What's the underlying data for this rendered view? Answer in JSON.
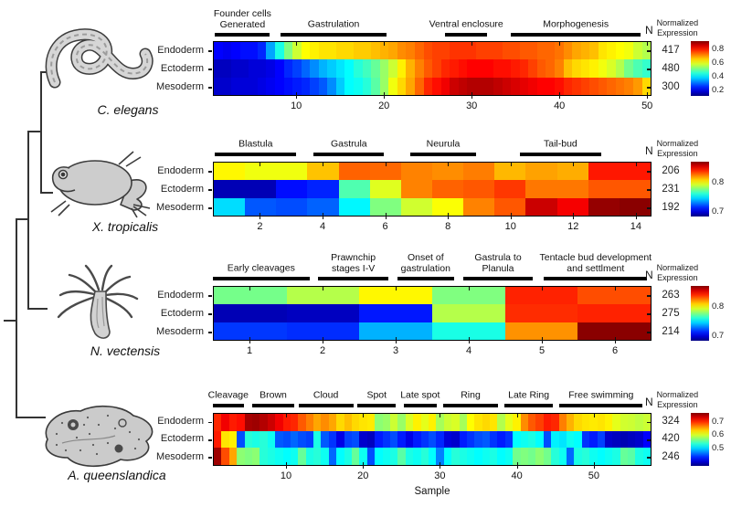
{
  "figure": {
    "xlabel": "Sample",
    "n_header": "N",
    "colorbar_title": "Normalized\nExpression"
  },
  "chart_data": [
    {
      "type": "heatmap",
      "species": "C. elegans",
      "rows": [
        "Endoderm",
        "Ectoderm",
        "Mesoderm"
      ],
      "n_values": [
        417,
        480,
        300
      ],
      "x_ticks": [
        10,
        20,
        30,
        40,
        50
      ],
      "n_samples": 50,
      "stages": [
        {
          "label": "Founder cells\nGenerated",
          "span": [
            0.005,
            0.13
          ]
        },
        {
          "label": "Gastrulation",
          "span": [
            0.155,
            0.395
          ]
        },
        {
          "label": "Ventral enclosure",
          "span": [
            0.53,
            0.625
          ]
        },
        {
          "label": "Morphogenesis",
          "span": [
            0.68,
            0.975
          ]
        }
      ],
      "colorbar": {
        "vmin": 0.1,
        "vmax": 0.9,
        "ticks": [
          0.8,
          0.6,
          0.4,
          0.2
        ]
      },
      "values": [
        [
          0.2,
          0.19,
          0.2,
          0.21,
          0.21,
          0.23,
          0.33,
          0.42,
          0.5,
          0.56,
          0.6,
          0.61,
          0.62,
          0.62,
          0.63,
          0.63,
          0.64,
          0.64,
          0.65,
          0.66,
          0.67,
          0.69,
          0.7,
          0.72,
          0.74,
          0.75,
          0.75,
          0.76,
          0.76,
          0.76,
          0.75,
          0.75,
          0.75,
          0.74,
          0.74,
          0.73,
          0.73,
          0.72,
          0.72,
          0.71,
          0.69,
          0.67,
          0.66,
          0.65,
          0.62,
          0.61,
          0.6,
          0.59,
          0.56,
          0.54
        ],
        [
          0.15,
          0.15,
          0.16,
          0.16,
          0.17,
          0.17,
          0.18,
          0.2,
          0.23,
          0.25,
          0.28,
          0.31,
          0.34,
          0.36,
          0.38,
          0.4,
          0.43,
          0.45,
          0.48,
          0.52,
          0.56,
          0.61,
          0.66,
          0.7,
          0.73,
          0.75,
          0.77,
          0.78,
          0.79,
          0.8,
          0.8,
          0.8,
          0.79,
          0.79,
          0.78,
          0.77,
          0.75,
          0.73,
          0.72,
          0.7,
          0.65,
          0.63,
          0.62,
          0.61,
          0.59,
          0.57,
          0.54,
          0.49,
          0.46,
          0.44
        ],
        [
          0.16,
          0.16,
          0.17,
          0.17,
          0.17,
          0.18,
          0.19,
          0.2,
          0.21,
          0.22,
          0.23,
          0.25,
          0.27,
          0.31,
          0.36,
          0.4,
          0.41,
          0.43,
          0.47,
          0.52,
          0.59,
          0.63,
          0.67,
          0.72,
          0.77,
          0.79,
          0.81,
          0.84,
          0.85,
          0.86,
          0.86,
          0.86,
          0.85,
          0.84,
          0.83,
          0.82,
          0.81,
          0.8,
          0.8,
          0.79,
          0.77,
          0.76,
          0.75,
          0.74,
          0.73,
          0.72,
          0.71,
          0.7,
          0.68,
          0.63
        ]
      ]
    },
    {
      "type": "heatmap",
      "species": "X. tropicalis",
      "rows": [
        "Endoderm",
        "Ectoderm",
        "Mesoderm"
      ],
      "n_values": [
        206,
        231,
        192
      ],
      "x_ticks": [
        2,
        4,
        6,
        8,
        10,
        12,
        14
      ],
      "n_samples": 14,
      "stages": [
        {
          "label": "Blastula",
          "span": [
            0.005,
            0.19
          ]
        },
        {
          "label": "Gastrula",
          "span": [
            0.23,
            0.39
          ]
        },
        {
          "label": "Neurula",
          "span": [
            0.45,
            0.6
          ]
        },
        {
          "label": "Tail-bud",
          "span": [
            0.7,
            0.885
          ]
        }
      ],
      "colorbar": {
        "vmin": 0.68,
        "vmax": 0.87,
        "ticks": [
          0.8,
          0.7
        ]
      },
      "values": [
        [
          0.8,
          0.796,
          0.796,
          0.81,
          0.828,
          0.827,
          0.822,
          0.82,
          0.823,
          0.812,
          0.816,
          0.814,
          0.842,
          0.842
        ],
        [
          0.69,
          0.69,
          0.706,
          0.71,
          0.766,
          0.793,
          0.822,
          0.828,
          0.83,
          0.836,
          0.824,
          0.824,
          0.83,
          0.83
        ],
        [
          0.745,
          0.72,
          0.718,
          0.722,
          0.75,
          0.775,
          0.79,
          0.798,
          0.822,
          0.83,
          0.856,
          0.848,
          0.866,
          0.868
        ]
      ]
    },
    {
      "type": "heatmap",
      "species": "N. vectensis",
      "rows": [
        "Endoderm",
        "Ectoderm",
        "Mesoderm"
      ],
      "n_values": [
        263,
        275,
        214
      ],
      "x_ticks": [
        1,
        2,
        3,
        4,
        5,
        6
      ],
      "n_samples": 6,
      "stages": [
        {
          "label": "Early cleavages",
          "span": [
            0.0,
            0.22
          ]
        },
        {
          "label": "Prawnchip\nstages I-V",
          "span": [
            0.24,
            0.4
          ]
        },
        {
          "label": "Onset of\ngastrulation",
          "span": [
            0.42,
            0.55
          ]
        },
        {
          "label": "Gastrula to\nPlanula",
          "span": [
            0.57,
            0.73
          ]
        },
        {
          "label": "Tentacle bud development\nand settlment",
          "span": [
            0.755,
            0.99
          ]
        }
      ],
      "colorbar": {
        "vmin": 0.68,
        "vmax": 0.87,
        "ticks": [
          0.8,
          0.7
        ]
      },
      "values": [
        [
          0.773,
          0.785,
          0.8,
          0.775,
          0.84,
          0.832
        ],
        [
          0.69,
          0.692,
          0.708,
          0.785,
          0.838,
          0.84
        ],
        [
          0.714,
          0.712,
          0.737,
          0.756,
          0.819,
          0.868
        ]
      ]
    },
    {
      "type": "heatmap",
      "species": "A. queenslandica",
      "rows": [
        "Endoderm",
        "Ectoderm",
        "Mesoderm"
      ],
      "n_values": [
        324,
        420,
        246
      ],
      "x_ticks": [
        10,
        20,
        30,
        40,
        50
      ],
      "n_samples": 57,
      "stages": [
        {
          "label": "Cleavage",
          "span": [
            0.0,
            0.07
          ]
        },
        {
          "label": "Brown",
          "span": [
            0.09,
            0.185
          ]
        },
        {
          "label": "Cloud",
          "span": [
            0.195,
            0.32
          ]
        },
        {
          "label": "Spot",
          "span": [
            0.33,
            0.417
          ]
        },
        {
          "label": "Late spot",
          "span": [
            0.435,
            0.51
          ]
        },
        {
          "label": "Ring",
          "span": [
            0.525,
            0.65
          ]
        },
        {
          "label": "Late Ring",
          "span": [
            0.665,
            0.775
          ]
        },
        {
          "label": "Free swimming",
          "span": [
            0.79,
            0.98
          ]
        }
      ],
      "colorbar": {
        "vmin": 0.36,
        "vmax": 0.76,
        "ticks": [
          0.7,
          0.6,
          0.5
        ]
      },
      "values": [
        [
          0.695,
          0.715,
          0.7,
          0.705,
          0.745,
          0.748,
          0.74,
          0.73,
          0.715,
          0.7,
          0.695,
          0.675,
          0.66,
          0.645,
          0.655,
          0.645,
          0.625,
          0.635,
          0.625,
          0.62,
          0.618,
          0.565,
          0.57,
          0.59,
          0.57,
          0.595,
          0.615,
          0.6,
          0.615,
          0.575,
          0.59,
          0.595,
          0.575,
          0.61,
          0.62,
          0.625,
          0.62,
          0.58,
          0.6,
          0.615,
          0.655,
          0.675,
          0.685,
          0.7,
          0.695,
          0.66,
          0.64,
          0.625,
          0.62,
          0.618,
          0.62,
          0.615,
          0.6,
          0.592,
          0.59,
          0.585,
          0.59
        ],
        [
          0.7,
          0.62,
          0.615,
          0.44,
          0.525,
          0.52,
          0.525,
          0.515,
          0.445,
          0.44,
          0.45,
          0.44,
          0.435,
          0.52,
          0.445,
          0.43,
          0.4,
          0.435,
          0.44,
          0.39,
          0.385,
          0.42,
          0.43,
          0.44,
          0.42,
          0.4,
          0.42,
          0.43,
          0.44,
          0.425,
          0.395,
          0.39,
          0.42,
          0.43,
          0.44,
          0.445,
          0.43,
          0.42,
          0.43,
          0.51,
          0.515,
          0.52,
          0.51,
          0.44,
          0.505,
          0.5,
          0.515,
          0.51,
          0.43,
          0.42,
          0.435,
          0.39,
          0.385,
          0.38,
          0.385,
          0.39,
          0.41
        ],
        [
          0.748,
          0.68,
          0.645,
          0.565,
          0.56,
          0.565,
          0.525,
          0.52,
          0.515,
          0.51,
          0.515,
          0.55,
          0.52,
          0.525,
          0.515,
          0.45,
          0.51,
          0.52,
          0.55,
          0.515,
          0.44,
          0.51,
          0.515,
          0.52,
          0.545,
          0.52,
          0.515,
          0.525,
          0.51,
          0.46,
          0.51,
          0.525,
          0.52,
          0.515,
          0.51,
          0.515,
          0.52,
          0.51,
          0.515,
          0.555,
          0.56,
          0.555,
          0.565,
          0.555,
          0.525,
          0.515,
          0.45,
          0.52,
          0.525,
          0.515,
          0.51,
          0.515,
          0.52,
          0.55,
          0.545,
          0.52,
          0.515
        ]
      ]
    }
  ]
}
